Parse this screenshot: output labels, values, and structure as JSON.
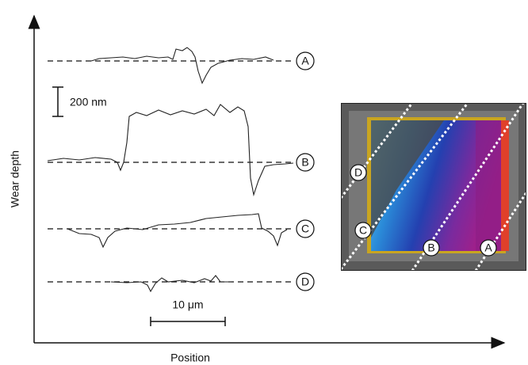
{
  "axes": {
    "y_label": "Wear depth",
    "x_label": "Position"
  },
  "scale_bars": {
    "depth": "200 nm",
    "length": "10 μm"
  },
  "profiles": [
    {
      "label": "A"
    },
    {
      "label": "B"
    },
    {
      "label": "C"
    },
    {
      "label": "D"
    }
  ],
  "inset": {
    "labels": [
      "D",
      "C",
      "B",
      "A"
    ]
  }
}
